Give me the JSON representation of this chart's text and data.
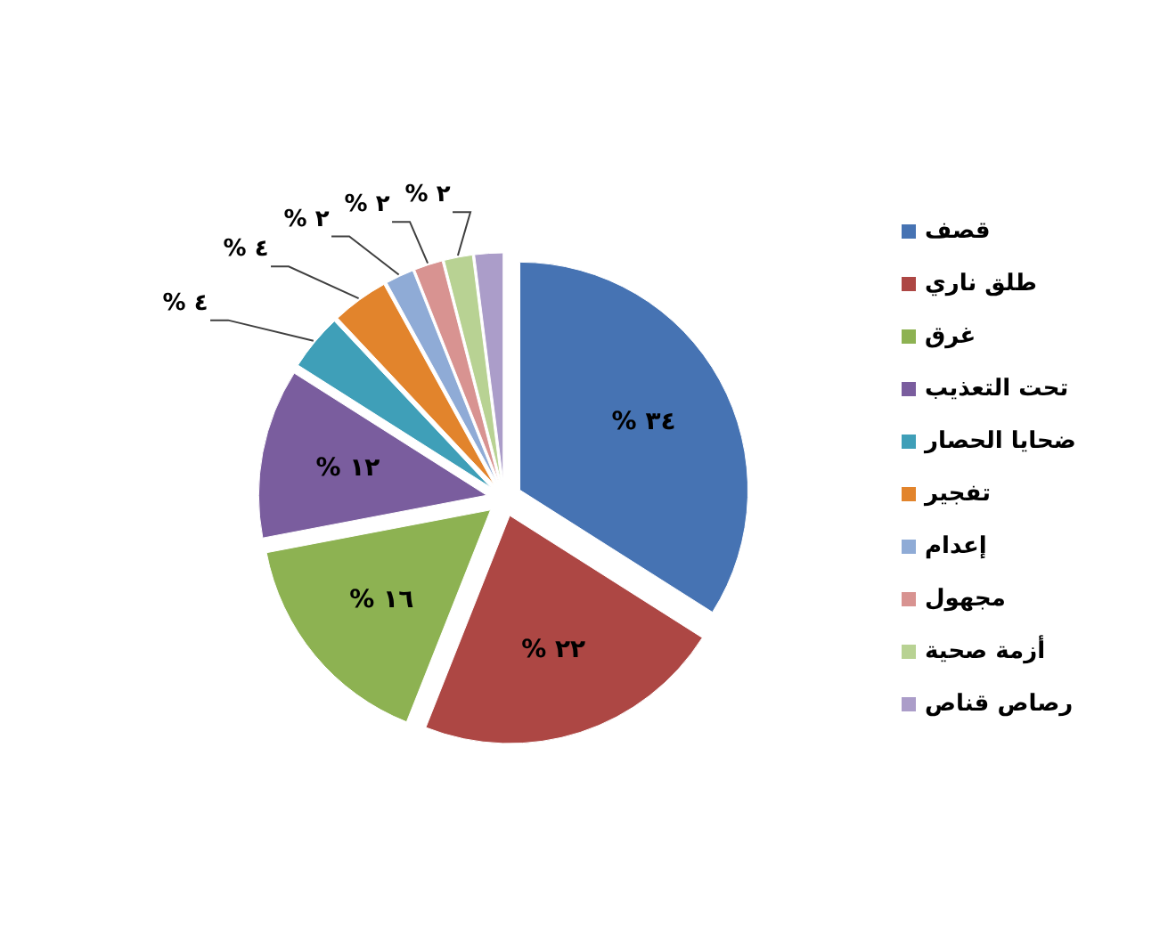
{
  "chart_data": {
    "type": "pie",
    "categories": [
      "قصف",
      "طلق ناري",
      "غرق",
      "تحت التعذيب",
      "ضحايا الحصار",
      "تفجير",
      "إعدام",
      "مجهول",
      "أزمة صحية",
      "رصاص قناص"
    ],
    "values": [
      34,
      22,
      16,
      12,
      4,
      4,
      2,
      2,
      2,
      2
    ],
    "value_labels": [
      "٣٤ %",
      "٢٢ %",
      "١٦ %",
      "١٢ %",
      "٤ %",
      "٤ %",
      "٢ %",
      "٢ %",
      "٢ %",
      null
    ],
    "colors": [
      "#4673b3",
      "#ad4744",
      "#8db252",
      "#7a5d9e",
      "#3f9fb8",
      "#e2842c",
      "#8fabd6",
      "#d89391",
      "#b8d293",
      "#ab9dc9"
    ],
    "legend": "right"
  }
}
